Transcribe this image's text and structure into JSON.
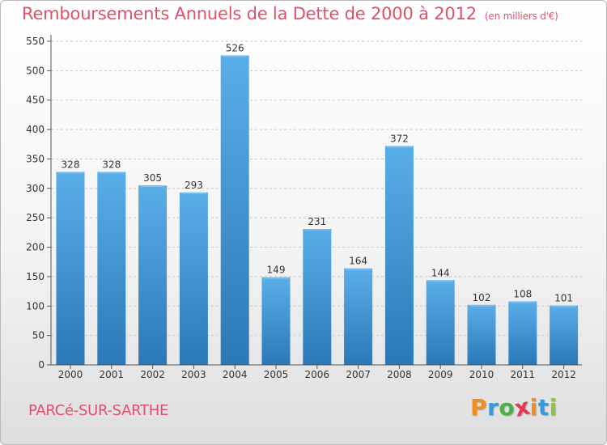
{
  "title": "Remboursements Annuels de la Dette de 2000 à 2012",
  "unit_note": "(en milliers d'€)",
  "place": "PARCé-SUR-SARTHE",
  "brand": {
    "text": "Proxiti",
    "letter_colors": [
      "#f28c1e",
      "#3a9ad9",
      "#4dae4a",
      "#e8384f",
      "#f28c1e",
      "#3a9ad9",
      "#8cc63f"
    ]
  },
  "colors": {
    "title": "#e0506b",
    "bar_top": "#5aaee8",
    "bar_bottom": "#2a78b8",
    "grid": "#c8c8c8",
    "axis": "#555555"
  },
  "chart_data": {
    "type": "bar",
    "categories": [
      "2000",
      "2001",
      "2002",
      "2003",
      "2004",
      "2005",
      "2006",
      "2007",
      "2008",
      "2009",
      "2010",
      "2011",
      "2012"
    ],
    "values": [
      328,
      328,
      305,
      293,
      526,
      149,
      231,
      164,
      372,
      144,
      102,
      108,
      101
    ],
    "ylim": [
      0,
      550
    ],
    "yticks": [
      0,
      50,
      100,
      150,
      200,
      250,
      300,
      350,
      400,
      450,
      500,
      550
    ],
    "grid": true,
    "data_labels": true
  }
}
